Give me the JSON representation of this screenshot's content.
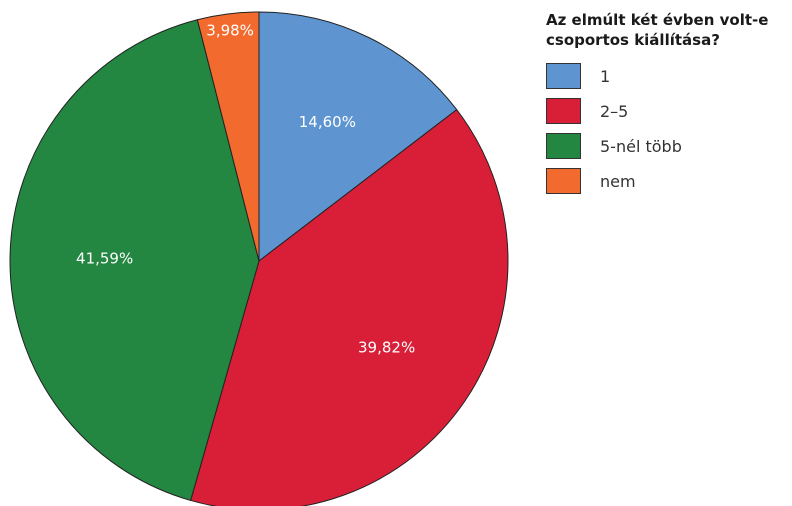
{
  "chart_data": {
    "type": "pie",
    "title": "",
    "legend_title": "Az elmúlt két évben volt-e\ncsoportos kiállítása?",
    "legend_position": "right",
    "start": "top",
    "direction": "clockwise",
    "slices": [
      {
        "label": "1",
        "value": 14.6,
        "display": "14,60%",
        "color": "#5e94cf"
      },
      {
        "label": "2–5",
        "value": 39.82,
        "display": "39,82%",
        "color": "#d91f38"
      },
      {
        "label": "5-nél több",
        "value": 41.59,
        "display": "41,59%",
        "color": "#238641"
      },
      {
        "label": "nem",
        "value": 3.98,
        "display": "3,98%",
        "color": "#f26a2e"
      }
    ]
  }
}
